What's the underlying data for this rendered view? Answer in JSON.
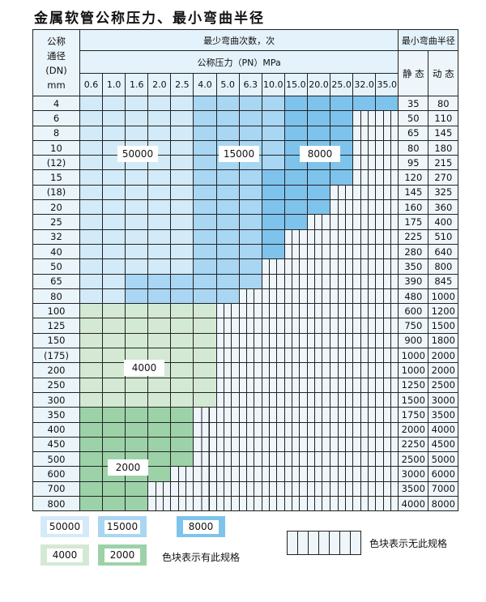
{
  "title": "金属软管公称压力、最小弯曲半径",
  "header": {
    "dn_label": [
      "公称",
      "通径",
      "(DN)",
      "mm"
    ],
    "bend_count": "最少弯曲次数，次",
    "pressure": "公称压力（PN）MPa",
    "min_radius": "最小弯曲半径",
    "static": "静 态",
    "dynamic": "动 态",
    "pn_values": [
      "0.6",
      "1.0",
      "1.6",
      "2.0",
      "2.5",
      "4.0",
      "5.0",
      "6.3",
      "10.0",
      "15.0",
      "20.0",
      "25.0",
      "32.0",
      "35.0"
    ]
  },
  "rows": [
    {
      "dn": "4",
      "static": "35",
      "dynamic": "80",
      "cells": "AAAAABBBBCCCCC"
    },
    {
      "dn": "6",
      "static": "50",
      "dynamic": "110",
      "cells": "AAAAABBBBCCCXX"
    },
    {
      "dn": "8",
      "static": "65",
      "dynamic": "145",
      "cells": "AAAAABBBBCCCXX"
    },
    {
      "dn": "10",
      "static": "80",
      "dynamic": "180",
      "cells": "AAAAABBBBCCCXX"
    },
    {
      "dn": "(12)",
      "static": "95",
      "dynamic": "215",
      "cells": "AAAAABBBBCCCXX"
    },
    {
      "dn": "15",
      "static": "120",
      "dynamic": "270",
      "cells": "AAAAABBBCCCCXX"
    },
    {
      "dn": "(18)",
      "static": "145",
      "dynamic": "325",
      "cells": "AAAAABBBCCCXXX"
    },
    {
      "dn": "20",
      "static": "160",
      "dynamic": "360",
      "cells": "AAAAABBBCCCXXX"
    },
    {
      "dn": "25",
      "static": "175",
      "dynamic": "400",
      "cells": "AAAAABBBCCXXXX"
    },
    {
      "dn": "32",
      "static": "225",
      "dynamic": "510",
      "cells": "AAAAABBBCXXXXX"
    },
    {
      "dn": "40",
      "static": "280",
      "dynamic": "640",
      "cells": "AAAAABBBCXXXXX"
    },
    {
      "dn": "50",
      "static": "350",
      "dynamic": "800",
      "cells": "AAAAABBBXXXXXX"
    },
    {
      "dn": "65",
      "static": "390",
      "dynamic": "845",
      "cells": "AABBBBBBXXXXXX"
    },
    {
      "dn": "80",
      "static": "480",
      "dynamic": "1000",
      "cells": "AABBBBBXXXXXXX"
    },
    {
      "dn": "100",
      "static": "600",
      "dynamic": "1200",
      "cells": "DDDDDDXXXXXXXX"
    },
    {
      "dn": "125",
      "static": "750",
      "dynamic": "1500",
      "cells": "DDDDDDXXXXXXXX"
    },
    {
      "dn": "150",
      "static": "900",
      "dynamic": "1800",
      "cells": "DDDDDDXXXXXXXX"
    },
    {
      "dn": "(175)",
      "static": "1000",
      "dynamic": "2000",
      "cells": "DDDDDDXXXXXXXX"
    },
    {
      "dn": "200",
      "static": "1000",
      "dynamic": "2000",
      "cells": "DDDDDDXXXXXXXX"
    },
    {
      "dn": "250",
      "static": "1250",
      "dynamic": "2500",
      "cells": "DDDDDDXXXXXXXX"
    },
    {
      "dn": "300",
      "static": "1500",
      "dynamic": "3000",
      "cells": "DDDDDDXXXXXXXX"
    },
    {
      "dn": "350",
      "static": "1750",
      "dynamic": "3500",
      "cells": "EEEEEXXXXXXXXX"
    },
    {
      "dn": "400",
      "static": "2000",
      "dynamic": "4000",
      "cells": "EEEEEXXXXXXXXX"
    },
    {
      "dn": "450",
      "static": "2250",
      "dynamic": "4500",
      "cells": "EEEEEXXXXXXXXX"
    },
    {
      "dn": "500",
      "static": "2500",
      "dynamic": "5000",
      "cells": "EEEEEXXXXXXXXX"
    },
    {
      "dn": "600",
      "static": "3000",
      "dynamic": "6000",
      "cells": "EEEEXXXXXXXXXX"
    },
    {
      "dn": "700",
      "static": "3500",
      "dynamic": "7000",
      "cells": "EEEXXXXXXXXXXX"
    },
    {
      "dn": "800",
      "static": "4000",
      "dynamic": "8000",
      "cells": "EEEXXXXXXXXXXX"
    }
  ],
  "region_labels": {
    "A": "50000",
    "B": "15000",
    "C": "8000",
    "D": "4000",
    "E": "2000"
  },
  "colors": {
    "A": "#d3eaf8",
    "B": "#a8d6f3",
    "C": "#7ec3ec",
    "D": "#d4e9d4",
    "E": "#9dd2a9",
    "unavailable": "#eef6fc"
  },
  "legend": {
    "items": [
      "50000",
      "15000",
      "8000",
      "4000",
      "2000"
    ],
    "available_text": "色块表示有此规格",
    "unavailable_text": "色块表示无此规格"
  }
}
